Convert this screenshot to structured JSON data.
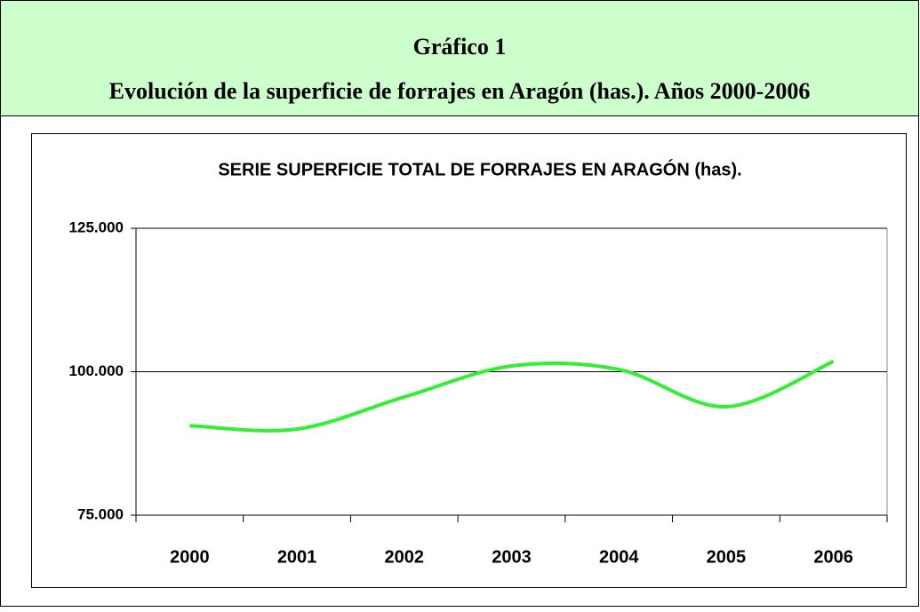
{
  "header": {
    "title": "Gráfico 1",
    "subtitle": "Evolución de la superficie de forrajes en Aragón  (has.). Años 2000-2006"
  },
  "chart_data": {
    "type": "line",
    "title": "SERIE SUPERFICIE TOTAL DE FORRAJES EN ARAGÓN (has).",
    "categories": [
      "2000",
      "2001",
      "2002",
      "2003",
      "2004",
      "2005",
      "2006"
    ],
    "values": [
      90600,
      90000,
      95600,
      101000,
      100400,
      93900,
      101800
    ],
    "color": "#33ee33",
    "ylim": [
      75000,
      125000
    ],
    "yticks": [
      {
        "value": 75000,
        "label": "75.000"
      },
      {
        "value": 100000,
        "label": "100.000"
      },
      {
        "value": 125000,
        "label": "125.000"
      }
    ],
    "grid": true
  }
}
